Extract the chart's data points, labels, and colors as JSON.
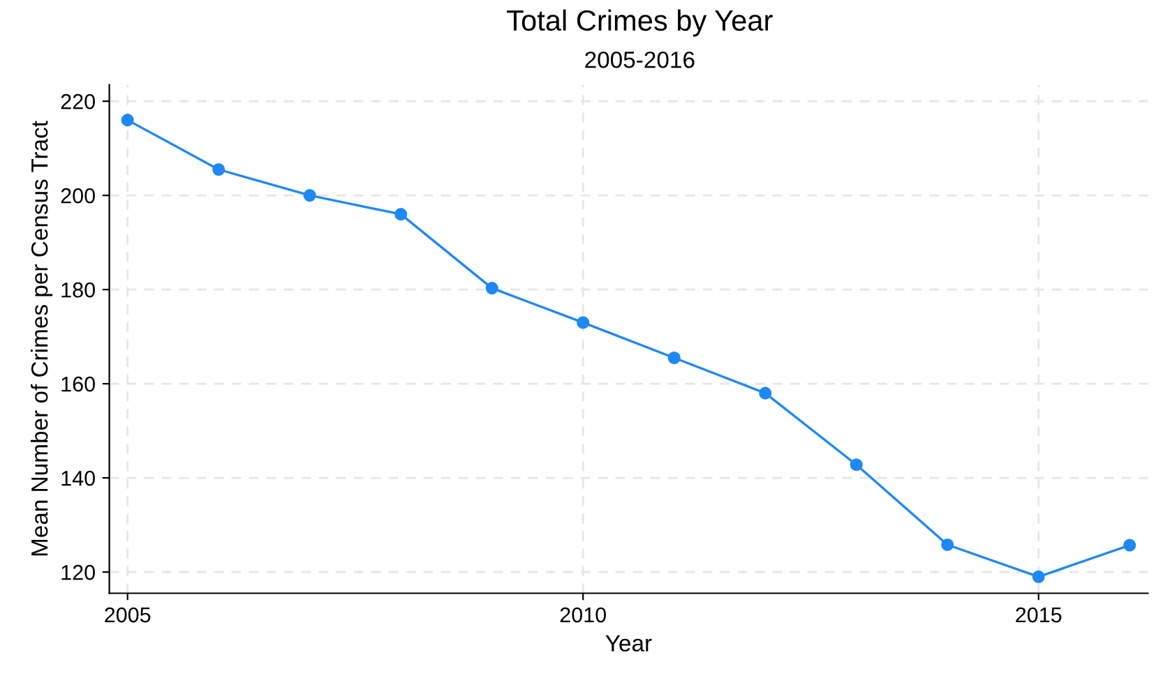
{
  "chart_data": {
    "type": "line",
    "title": "Total Crimes by Year",
    "subtitle": "2005-2016",
    "xlabel": "Year",
    "ylabel": "Mean Number of Crimes per Census Tract",
    "x": [
      2005,
      2006,
      2007,
      2008,
      2009,
      2010,
      2011,
      2012,
      2013,
      2014,
      2015,
      2016
    ],
    "series": [
      {
        "color": "#1e88f5",
        "values": [
          216,
          205.5,
          200,
          196,
          180.3,
          173,
          165.5,
          158,
          142.8,
          125.8,
          119,
          125.7
        ]
      }
    ],
    "xlim": [
      2004.8,
      2016.2
    ],
    "xticks": [
      2005,
      2010,
      2015
    ],
    "ylim": [
      115.5,
      223.5
    ],
    "yticks": [
      120,
      140,
      160,
      180,
      200,
      220
    ],
    "grid": true,
    "marker": "circle",
    "line_style": "solid",
    "legend": false
  }
}
